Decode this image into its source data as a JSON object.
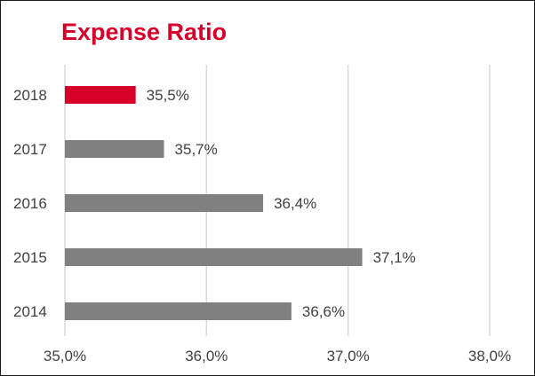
{
  "chart_data": {
    "type": "bar",
    "orientation": "horizontal",
    "title": "Expense Ratio",
    "xlabel": "",
    "ylabel": "",
    "categories": [
      "2018",
      "2017",
      "2016",
      "2015",
      "2014"
    ],
    "values": [
      35.5,
      35.7,
      36.4,
      37.1,
      36.6
    ],
    "value_labels": [
      "35,5%",
      "35,7%",
      "36,4%",
      "37,1%",
      "36,6%"
    ],
    "xlim": [
      35.0,
      38.0
    ],
    "x_ticks": [
      35.0,
      36.0,
      37.0,
      38.0
    ],
    "x_tick_labels": [
      "35,0%",
      "36,0%",
      "37,0%",
      "38,0%"
    ],
    "grid": "vertical",
    "legend": "none",
    "colors": {
      "highlight": "#d6002a",
      "default": "#808080",
      "grid": "#d9d9d9",
      "title": "#d6002a",
      "text": "#404040"
    },
    "highlight_category": "2018"
  }
}
